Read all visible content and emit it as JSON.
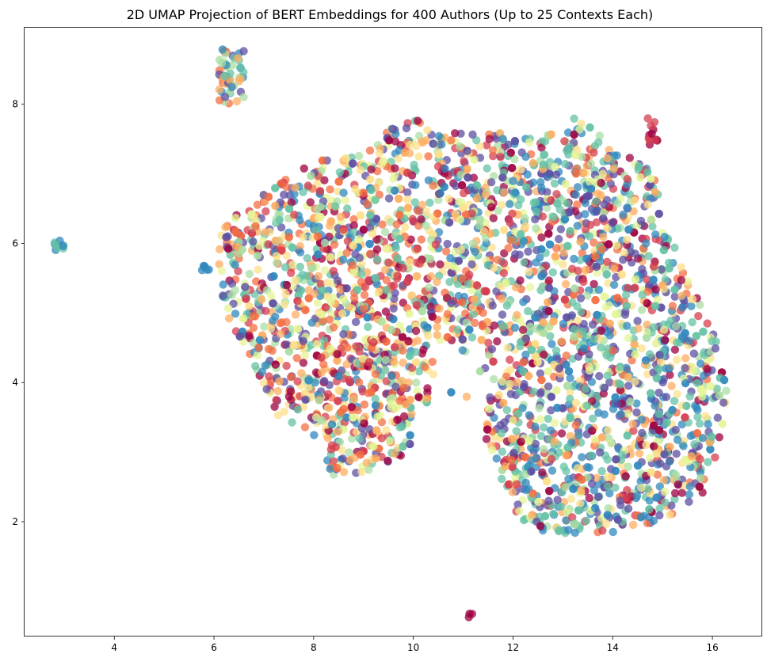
{
  "chart_data": {
    "type": "scatter",
    "title": "2D UMAP Projection of BERT Embeddings for 400 Authors (Up to 25 Contexts Each)",
    "xlabel": "",
    "ylabel": "",
    "xlim": [
      2.2,
      17.0
    ],
    "ylim": [
      0.35,
      9.1
    ],
    "x_ticks": [
      4,
      6,
      8,
      10,
      12,
      14,
      16
    ],
    "y_ticks": [
      2,
      4,
      6,
      8
    ],
    "x_tick_labels": [
      "4",
      "6",
      "8",
      "10",
      "12",
      "14",
      "16"
    ],
    "y_tick_labels": [
      "2",
      "4",
      "6",
      "8"
    ],
    "grid": false,
    "legend": "none",
    "colormap": "Spectral",
    "palette": [
      "#9e0142",
      "#d53e4f",
      "#f46d43",
      "#fdae61",
      "#fee08b",
      "#e6f598",
      "#abdda4",
      "#66c2a5",
      "#3288bd",
      "#5e4fa2"
    ],
    "marker_alpha": 0.75,
    "clusters": [
      {
        "x": [
          6.1,
          6.6
        ],
        "y": [
          8.0,
          8.85
        ],
        "n": 55
      },
      {
        "x": [
          2.8,
          3.0
        ],
        "y": [
          5.9,
          6.05
        ],
        "n": 10
      },
      {
        "x": [
          5.75,
          5.9
        ],
        "y": [
          5.6,
          5.68
        ],
        "n": 6
      },
      {
        "x": [
          14.7,
          14.9
        ],
        "y": [
          7.4,
          7.88
        ],
        "n": 12
      },
      {
        "x": [
          11.1,
          11.2
        ],
        "y": [
          0.6,
          0.68
        ],
        "n": 3
      }
    ],
    "outline": [
      [
        6.2,
        6.3
      ],
      [
        7.2,
        6.8
      ],
      [
        8.0,
        7.2
      ],
      [
        9.0,
        7.35
      ],
      [
        9.9,
        7.85
      ],
      [
        10.8,
        7.6
      ],
      [
        11.6,
        7.6
      ],
      [
        12.5,
        7.5
      ],
      [
        13.3,
        7.85
      ],
      [
        14.1,
        7.4
      ],
      [
        14.9,
        7.0
      ],
      [
        15.1,
        6.2
      ],
      [
        15.6,
        5.4
      ],
      [
        15.9,
        5.0
      ],
      [
        16.2,
        4.3
      ],
      [
        16.3,
        3.8
      ],
      [
        16.1,
        3.0
      ],
      [
        15.8,
        2.4
      ],
      [
        15.0,
        2.0
      ],
      [
        14.0,
        1.85
      ],
      [
        12.8,
        1.8
      ],
      [
        12.0,
        2.1
      ],
      [
        11.6,
        2.9
      ],
      [
        11.4,
        3.3
      ],
      [
        11.0,
        3.8
      ],
      [
        10.2,
        3.5
      ],
      [
        9.8,
        2.9
      ],
      [
        8.9,
        2.7
      ],
      [
        8.4,
        2.65
      ],
      [
        8.0,
        3.2
      ],
      [
        7.3,
        3.5
      ],
      [
        6.8,
        4.2
      ],
      [
        6.3,
        4.9
      ],
      [
        6.1,
        5.4
      ],
      [
        6.1,
        6.0
      ]
    ],
    "main_point_count": 3600,
    "random_seed": 42
  }
}
